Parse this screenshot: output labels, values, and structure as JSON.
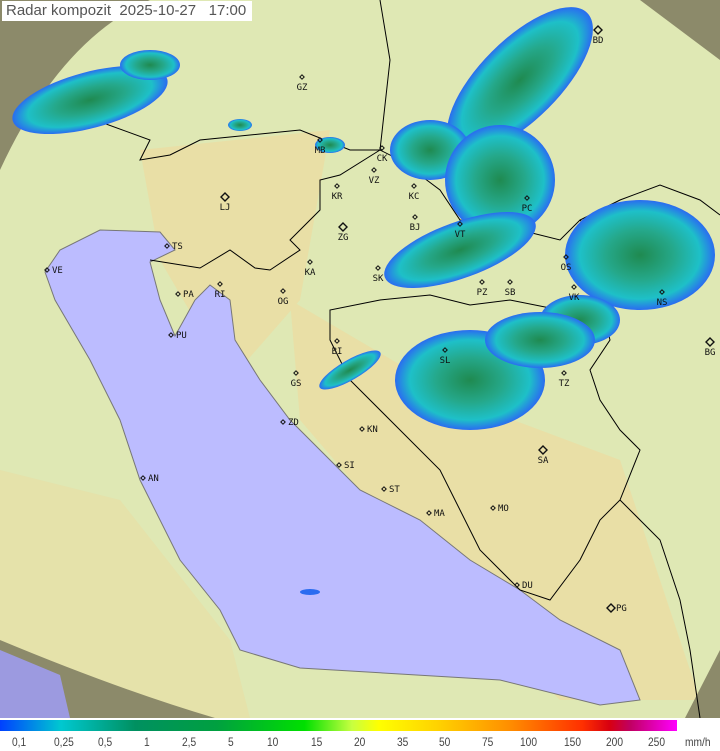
{
  "header": {
    "title": "Radar kompozit",
    "date": "2025-10-27",
    "time": "17:00"
  },
  "map": {
    "colors": {
      "land": "#dfe8b4",
      "sea": "#bcbcff",
      "outside_coverage": "#8c8a6a",
      "borders": "#000000",
      "coast": "#777777"
    },
    "cities": [
      {
        "code": "GZ",
        "big": false
      },
      {
        "code": "BD",
        "big": true
      },
      {
        "code": "MB",
        "big": false
      },
      {
        "code": "CK",
        "big": false
      },
      {
        "code": "VZ",
        "big": false
      },
      {
        "code": "KR",
        "big": false
      },
      {
        "code": "KC",
        "big": false
      },
      {
        "code": "PC",
        "big": false
      },
      {
        "code": "LJ",
        "big": true
      },
      {
        "code": "ZG",
        "big": true
      },
      {
        "code": "BJ",
        "big": false
      },
      {
        "code": "VT",
        "big": false
      },
      {
        "code": "TS",
        "big": false
      },
      {
        "code": "KA",
        "big": false
      },
      {
        "code": "SK",
        "big": false
      },
      {
        "code": "OS",
        "big": false
      },
      {
        "code": "VE",
        "big": false
      },
      {
        "code": "RI",
        "big": false
      },
      {
        "code": "PA",
        "big": false
      },
      {
        "code": "OG",
        "big": false
      },
      {
        "code": "PZ",
        "big": false
      },
      {
        "code": "SB",
        "big": false
      },
      {
        "code": "VK",
        "big": false
      },
      {
        "code": "NS",
        "big": false
      },
      {
        "code": "PU",
        "big": false
      },
      {
        "code": "BI",
        "big": false
      },
      {
        "code": "SL",
        "big": false
      },
      {
        "code": "BG",
        "big": true
      },
      {
        "code": "GS",
        "big": false
      },
      {
        "code": "TZ",
        "big": false
      },
      {
        "code": "ZD",
        "big": false
      },
      {
        "code": "KN",
        "big": false
      },
      {
        "code": "SI",
        "big": false
      },
      {
        "code": "SA",
        "big": true
      },
      {
        "code": "AN",
        "big": false
      },
      {
        "code": "ST",
        "big": false
      },
      {
        "code": "MA",
        "big": false
      },
      {
        "code": "MO",
        "big": false
      },
      {
        "code": "DU",
        "big": false
      },
      {
        "code": "PG",
        "big": true
      }
    ]
  },
  "legend": {
    "unit": "mm/h",
    "values": [
      "0,1",
      "0,25",
      "0,5",
      "1",
      "2,5",
      "5",
      "10",
      "15",
      "20",
      "35",
      "50",
      "75",
      "100",
      "150",
      "200",
      "250"
    ]
  }
}
